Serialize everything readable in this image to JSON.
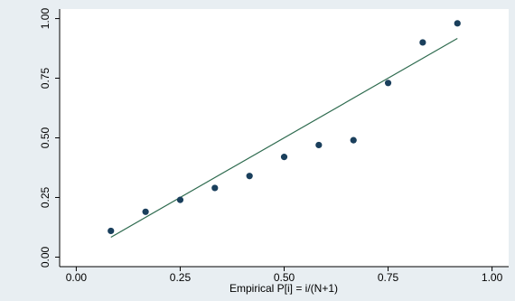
{
  "chart_data": {
    "type": "scatter",
    "title": "",
    "xlabel": "Empirical P[i] = i/(N+1)",
    "ylabel": "",
    "xlim": [
      -0.04,
      1.04
    ],
    "ylim": [
      -0.04,
      1.04
    ],
    "x_ticks": [
      0.0,
      0.25,
      0.5,
      0.75,
      1.0
    ],
    "x_tick_labels": [
      "0.00",
      "0.25",
      "0.50",
      "0.75",
      "1.00"
    ],
    "y_ticks": [
      0.0,
      0.25,
      0.5,
      0.75,
      1.0
    ],
    "y_tick_labels": [
      "0.00",
      "0.25",
      "0.50",
      "0.75",
      "1.00"
    ],
    "grid": false,
    "colors": {
      "background": "#e8eef2",
      "plot_area": "#ffffff",
      "points": "#1a3f5c",
      "line": "#2e6b4f"
    },
    "series": [
      {
        "type": "scatter",
        "x": [
          0.0833,
          0.1667,
          0.25,
          0.3333,
          0.4167,
          0.5,
          0.5833,
          0.6667,
          0.75,
          0.8333,
          0.9167
        ],
        "y": [
          0.11,
          0.19,
          0.24,
          0.29,
          0.34,
          0.42,
          0.47,
          0.49,
          0.73,
          0.9,
          0.98
        ]
      },
      {
        "type": "line",
        "x": [
          0.0833,
          0.9167
        ],
        "y": [
          0.0833,
          0.9167
        ]
      }
    ]
  }
}
